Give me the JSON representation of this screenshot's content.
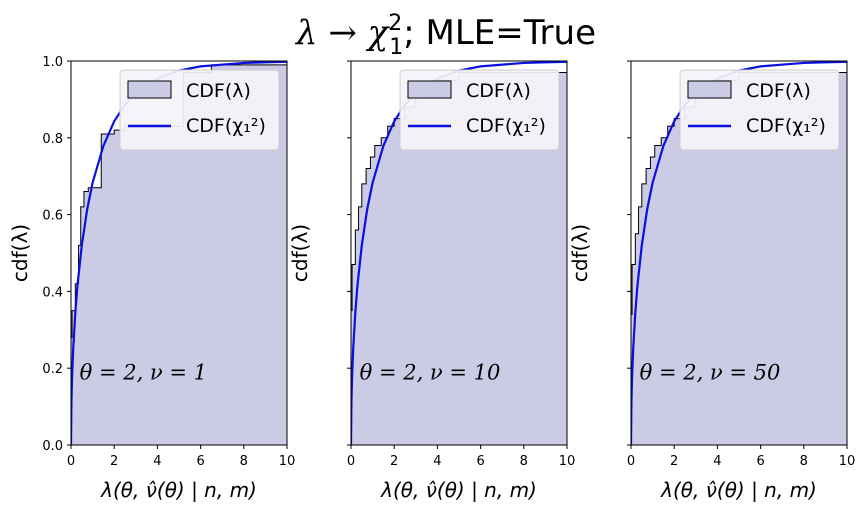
{
  "title_math": "λ → χ",
  "title_sup": "2",
  "title_sub": "1",
  "title_rest": "; MLE=True",
  "chart_data": [
    {
      "type": "area",
      "annotation": "θ = 2, ν = 1",
      "xlabel": "λ(θ, ν̂(θ) | n, m)",
      "ylabel": "cdf(λ)",
      "xlim": [
        0,
        10
      ],
      "ylim": [
        0,
        1
      ],
      "xticks": [
        0,
        2,
        4,
        6,
        8,
        10
      ],
      "yticks": [
        0.0,
        0.2,
        0.4,
        0.6,
        0.8,
        1.0
      ],
      "legend": [
        "CDF(λ)",
        "CDF(χ₁²)"
      ],
      "empirical_cdf": {
        "x": [
          0,
          0.05,
          0.2,
          0.35,
          0.45,
          0.6,
          0.8,
          1.4,
          2.0,
          2.5,
          5.2,
          6.5,
          10
        ],
        "y": [
          0.28,
          0.35,
          0.42,
          0.52,
          0.62,
          0.66,
          0.67,
          0.81,
          0.82,
          0.83,
          0.97,
          0.99,
          1.0
        ]
      },
      "chi2_cdf": {
        "x": [
          0,
          0.02,
          0.05,
          0.1,
          0.2,
          0.3,
          0.5,
          0.75,
          1.0,
          1.5,
          2.0,
          2.5,
          3.0,
          4.0,
          5.0,
          6.0,
          8.0,
          10.0
        ],
        "y": [
          0,
          0.112,
          0.177,
          0.248,
          0.345,
          0.416,
          0.52,
          0.614,
          0.683,
          0.779,
          0.843,
          0.886,
          0.917,
          0.954,
          0.975,
          0.986,
          0.995,
          0.998
        ]
      }
    },
    {
      "type": "area",
      "annotation": "θ = 2, ν = 10",
      "xlabel": "λ(θ, ν̂(θ) | n, m)",
      "ylabel": "cdf(λ)",
      "xlim": [
        0,
        10
      ],
      "ylim": [
        0,
        1
      ],
      "xticks": [
        0,
        2,
        4,
        6,
        8,
        10
      ],
      "yticks": [
        0.0,
        0.2,
        0.4,
        0.6,
        0.8,
        1.0
      ],
      "legend": [
        "CDF(λ)",
        "CDF(χ₁²)"
      ],
      "empirical_cdf": {
        "x": [
          0,
          0.05,
          0.2,
          0.35,
          0.5,
          0.7,
          0.9,
          1.1,
          1.4,
          1.7,
          2.0,
          2.5,
          3.0,
          4.0,
          5.0,
          10
        ],
        "y": [
          0.35,
          0.47,
          0.56,
          0.62,
          0.68,
          0.72,
          0.75,
          0.78,
          0.8,
          0.83,
          0.85,
          0.88,
          0.91,
          0.95,
          0.97,
          1.0
        ]
      },
      "chi2_cdf": {
        "x": [
          0,
          0.02,
          0.05,
          0.1,
          0.2,
          0.3,
          0.5,
          0.75,
          1.0,
          1.5,
          2.0,
          2.5,
          3.0,
          4.0,
          5.0,
          6.0,
          8.0,
          10.0
        ],
        "y": [
          0,
          0.112,
          0.177,
          0.248,
          0.345,
          0.416,
          0.52,
          0.614,
          0.683,
          0.779,
          0.843,
          0.886,
          0.917,
          0.954,
          0.975,
          0.986,
          0.995,
          0.998
        ]
      }
    },
    {
      "type": "area",
      "annotation": "θ = 2, ν = 50",
      "xlabel": "λ(θ, ν̂(θ) | n, m)",
      "ylabel": "cdf(λ)",
      "xlim": [
        0,
        10
      ],
      "ylim": [
        0,
        1
      ],
      "xticks": [
        0,
        2,
        4,
        6,
        8,
        10
      ],
      "yticks": [
        0.0,
        0.2,
        0.4,
        0.6,
        0.8,
        1.0
      ],
      "legend": [
        "CDF(λ)",
        "CDF(χ₁²)"
      ],
      "empirical_cdf": {
        "x": [
          0,
          0.05,
          0.2,
          0.35,
          0.5,
          0.7,
          0.9,
          1.1,
          1.4,
          1.7,
          2.0,
          2.5,
          3.0,
          4.0,
          5.0,
          10
        ],
        "y": [
          0.34,
          0.47,
          0.55,
          0.62,
          0.68,
          0.72,
          0.75,
          0.78,
          0.8,
          0.83,
          0.85,
          0.88,
          0.91,
          0.95,
          0.97,
          1.0
        ]
      },
      "chi2_cdf": {
        "x": [
          0,
          0.02,
          0.05,
          0.1,
          0.2,
          0.3,
          0.5,
          0.75,
          1.0,
          1.5,
          2.0,
          2.5,
          3.0,
          4.0,
          5.0,
          6.0,
          8.0,
          10.0
        ],
        "y": [
          0,
          0.112,
          0.177,
          0.248,
          0.345,
          0.416,
          0.52,
          0.614,
          0.683,
          0.779,
          0.843,
          0.886,
          0.917,
          0.954,
          0.975,
          0.986,
          0.995,
          0.998
        ]
      }
    }
  ],
  "colors": {
    "fill": "#cbcbe6",
    "step_edge": "#000000",
    "chi2_line": "#0a10e0",
    "legend_bg": "#f4f4f9",
    "legend_border": "#cccccc"
  }
}
